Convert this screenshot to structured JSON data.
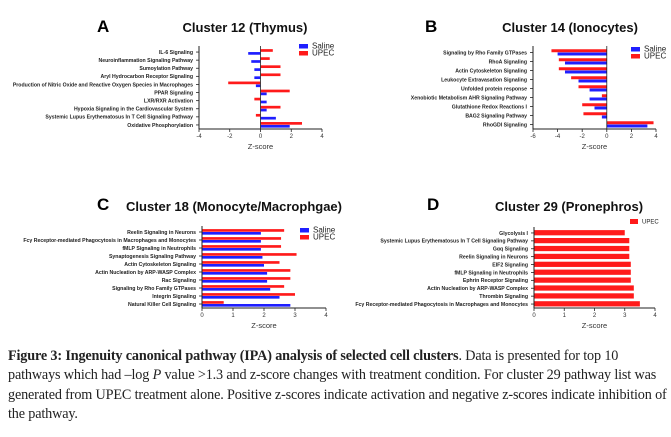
{
  "colors": {
    "saline": "#1f1fff",
    "upec": "#ff1a1a",
    "axis": "#222222"
  },
  "chart_data": [
    {
      "id": "A",
      "type": "bar",
      "orientation": "horizontal",
      "panel_letter": "A",
      "title": "Cluster 12 (Thymus)",
      "xlabel": "Z-score",
      "ylabel": "",
      "xlim": [
        -4,
        4
      ],
      "xticks": [
        -4,
        -2,
        0,
        2,
        4
      ],
      "legend": "top-right",
      "series_order_in_group": [
        "UPEC",
        "Saline"
      ],
      "categories": [
        "IL-6 Signaling",
        "Neuroinflammation Signaling Pathway",
        "Sumoylation Pathway",
        "Aryl Hydrocarbon Receptor Signaling",
        "Production of Nitric Oxide and Reactive Oxygen Species in Macrophages",
        "PPAR Signaling",
        "LXR/RXR Activation",
        "Hypoxia Signaling in the Cardiovascular System",
        "Systemic Lupus Erythematosus In T Cell Signaling Pathway",
        "Oxidative Phosphorylation"
      ],
      "series": [
        {
          "name": "Saline",
          "color_key": "saline",
          "values": [
            -0.8,
            -0.6,
            -0.4,
            -0.4,
            -0.3,
            0.4,
            0.4,
            0.4,
            1.0,
            1.9
          ]
        },
        {
          "name": "UPEC",
          "color_key": "upec",
          "values": [
            0.8,
            0.6,
            1.3,
            1.3,
            -2.1,
            1.9,
            -0.4,
            1.3,
            -0.3,
            2.7
          ]
        }
      ]
    },
    {
      "id": "B",
      "type": "bar",
      "orientation": "horizontal",
      "panel_letter": "B",
      "title": "Cluster 14 (Ionocytes)",
      "xlabel": "Z-score",
      "ylabel": "",
      "xlim": [
        -6,
        4
      ],
      "xticks": [
        -6,
        -4,
        -2,
        0,
        2,
        4
      ],
      "legend": "top-right",
      "series_order_in_group": [
        "UPEC",
        "Saline"
      ],
      "categories": [
        "Signaling by Rho Family GTPases",
        "RhoA Signaling",
        "Actin Cytoskeleton Signaling",
        "Leukocyte Extravasation Signaling",
        "Unfolded protein response",
        "Xenobiotic Metabolism AHR Signaling Pathway",
        "Glutathione Redox Reactions I",
        "BAG2 Signaling Pathway",
        "RhoGDI Signaling"
      ],
      "series": [
        {
          "name": "Saline",
          "color_key": "saline",
          "values": [
            -4.0,
            -3.4,
            -3.4,
            -2.3,
            -1.4,
            -1.4,
            -1.0,
            -0.4,
            3.3
          ]
        },
        {
          "name": "UPEC",
          "color_key": "upec",
          "values": [
            -4.5,
            -3.9,
            -3.9,
            -2.9,
            -2.3,
            -0.4,
            -2.0,
            -1.9,
            3.8
          ]
        }
      ]
    },
    {
      "id": "C",
      "type": "bar",
      "orientation": "horizontal",
      "panel_letter": "C",
      "title": "Cluster 18 (Monocyte/Macrophgae)",
      "xlabel": "Z-score",
      "ylabel": "",
      "xlim": [
        0,
        4
      ],
      "xticks": [
        0,
        1,
        2,
        3,
        4
      ],
      "legend": "top-right",
      "series_order_in_group": [
        "UPEC",
        "Saline"
      ],
      "categories": [
        "Reelin Signaling in Neurons",
        "Fcγ Receptor-mediated Phagocytosis in Macrophages and Monocytes",
        "fMLP Signaling in Neutrophils",
        "Synaptogenesis Signaling Pathway",
        "Actin Cytoskeleton Signaling",
        "Actin Nucleation by ARP-WASP Complex",
        "Rac Signaling",
        "Signaling by Rho Family GTPases",
        "Integrin Signaling",
        "Natural Killer Cell Signaling"
      ],
      "series": [
        {
          "name": "Saline",
          "color_key": "saline",
          "values": [
            1.9,
            1.9,
            1.9,
            1.95,
            2.0,
            2.1,
            2.1,
            2.2,
            2.5,
            2.85
          ]
        },
        {
          "name": "UPEC",
          "color_key": "upec",
          "values": [
            2.65,
            2.55,
            2.55,
            3.05,
            2.5,
            2.85,
            2.85,
            2.65,
            3.0,
            0.7
          ]
        }
      ]
    },
    {
      "id": "D",
      "type": "bar",
      "orientation": "horizontal",
      "panel_letter": "D",
      "title": "Cluster 29 (Pronephros)",
      "xlabel": "Z-score",
      "ylabel": "",
      "xlim": [
        0,
        4
      ],
      "xticks": [
        0,
        1,
        2,
        3,
        4
      ],
      "legend": "top-right",
      "series_order_in_group": [
        "UPEC"
      ],
      "categories": [
        "Glycolysis I",
        "Systemic Lupus Erythematosus In T Cell Signaling Pathway",
        "Gαq Signaling",
        "Reelin Signaling in Neurons",
        "EIF2 Signaling",
        "fMLP Signaling in Neutrophils",
        "Ephrin Receptor Signaling",
        "Actin Nucleation by ARP-WASP Complex",
        "Thrombin Signaling",
        "Fcγ Receptor-mediated Phagocytosis in Macrophages and Monocytes"
      ],
      "series": [
        {
          "name": "UPEC",
          "color_key": "upec",
          "values": [
            3.0,
            3.15,
            3.15,
            3.15,
            3.2,
            3.2,
            3.2,
            3.3,
            3.3,
            3.5
          ]
        }
      ]
    }
  ],
  "caption": {
    "label": "Figure 3",
    "separator": ": ",
    "title": "Ingenuity canonical pathway (IPA) analysis of selected cell clusters",
    "body_part1": ". Data is presented for top 10 pathways which had –log ",
    "body_italic": "P",
    "body_part2": " value >1.3 and z-score changes with treatment condition. For cluster 29 pathway list was generated from UPEC treatment alone. Positive z-scores indicate activation and negative z-scores indicate inhibition of the pathway."
  }
}
